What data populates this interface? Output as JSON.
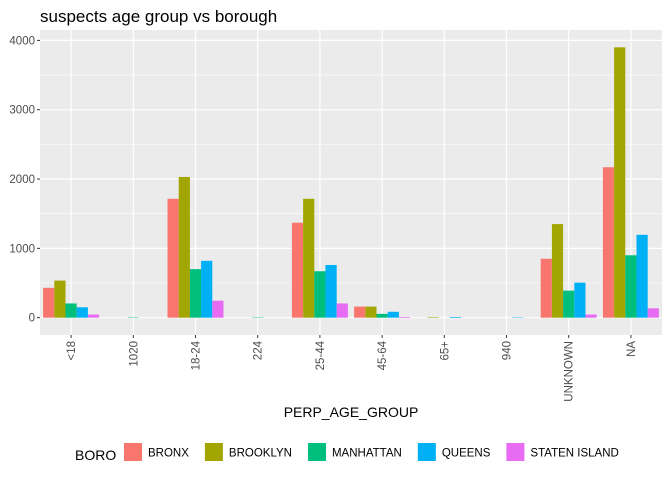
{
  "chart_data": {
    "type": "bar",
    "title": "suspects age group vs borough",
    "xlabel": "PERP_AGE_GROUP",
    "ylabel": "",
    "categories": [
      "<18",
      "1020",
      "18-24",
      "224",
      "25-44",
      "45-64",
      "65+",
      "940",
      "UNKNOWN",
      "NA"
    ],
    "ylim": [
      -250,
      4150
    ],
    "yticks": [
      0,
      1000,
      2000,
      3000,
      4000
    ],
    "grid": true,
    "legend": {
      "title": "BORO",
      "position": "bottom"
    },
    "series": [
      {
        "name": "BRONX",
        "color": "#F8766D",
        "values": [
          430,
          null,
          1715,
          null,
          1370,
          160,
          null,
          null,
          850,
          2170
        ]
      },
      {
        "name": "BROOKLYN",
        "color": "#A3A500",
        "values": [
          535,
          null,
          2030,
          null,
          1715,
          160,
          8,
          null,
          1350,
          3900
        ]
      },
      {
        "name": "MANHATTAN",
        "color": "#00BF7D",
        "values": [
          205,
          1,
          700,
          1,
          670,
          55,
          null,
          null,
          390,
          900
        ]
      },
      {
        "name": "QUEENS",
        "color": "#00B0F6",
        "values": [
          150,
          null,
          820,
          null,
          760,
          85,
          10,
          1,
          505,
          1195
        ]
      },
      {
        "name": "STATEN ISLAND",
        "color": "#E76BF3",
        "values": [
          45,
          null,
          245,
          null,
          205,
          10,
          null,
          null,
          45,
          135
        ]
      }
    ]
  }
}
